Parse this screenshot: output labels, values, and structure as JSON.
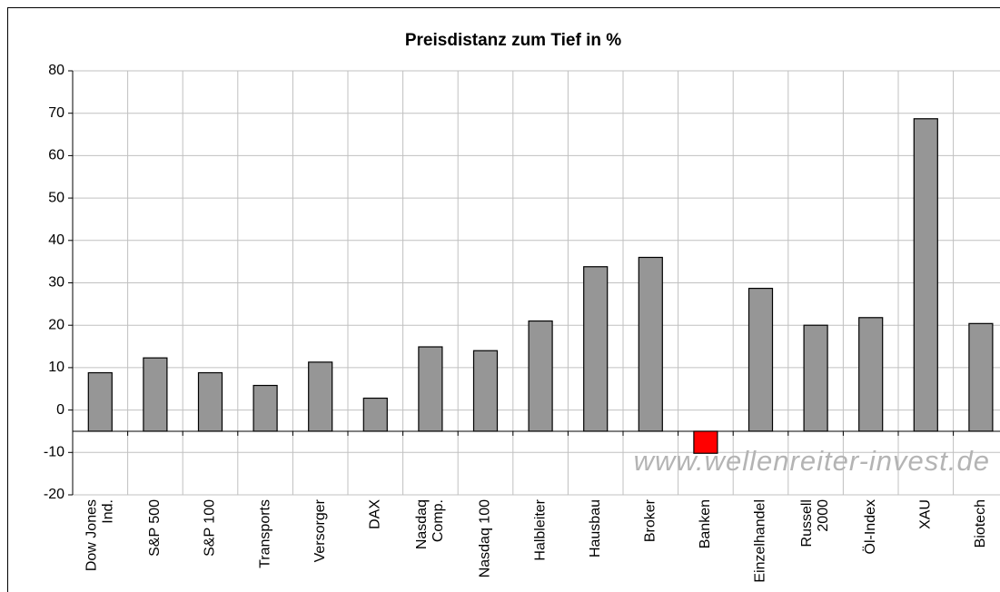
{
  "chart_data": {
    "type": "bar",
    "title": "Preisdistanz zum Tief in %",
    "categories": [
      "Dow Jones\nInd.",
      "S&P 500",
      "S&P 100",
      "Transports",
      "Versorger",
      "DAX",
      "Nasdaq\nComp.",
      "Nasdaq 100",
      "Halbleiter",
      "Hausbau",
      "Broker",
      "Banken",
      "Einzelhandel",
      "Russell\n2000",
      "Öl-Index",
      "XAU",
      "Biotech"
    ],
    "values": [
      8.8,
      12.3,
      8.8,
      5.8,
      11.3,
      2.8,
      14.9,
      14.0,
      21.0,
      33.8,
      36.0,
      -10.2,
      28.7,
      20.0,
      21.8,
      68.7,
      20.4
    ],
    "colors": [
      "#969696",
      "#969696",
      "#969696",
      "#969696",
      "#969696",
      "#969696",
      "#969696",
      "#969696",
      "#969696",
      "#969696",
      "#969696",
      "#ff0000",
      "#969696",
      "#969696",
      "#969696",
      "#969696",
      "#969696"
    ],
    "ylim": [
      -20,
      80
    ],
    "yticks": [
      -20,
      -10,
      0,
      10,
      20,
      30,
      40,
      50,
      60,
      70,
      80
    ],
    "x_axis_crosses": -5,
    "grid": true,
    "watermark": "www.wellenreiter-invest.de"
  }
}
